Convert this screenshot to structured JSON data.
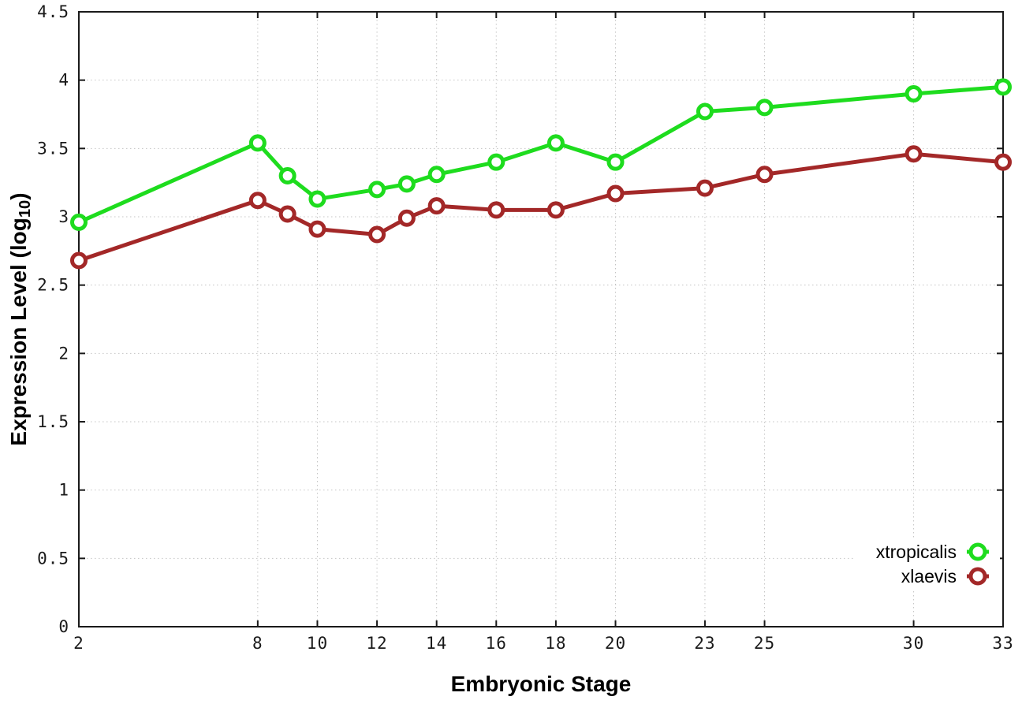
{
  "chart_data": {
    "type": "line",
    "title": "",
    "xlabel": "Embryonic Stage",
    "ylabel": {
      "prefix": "Expression Level (log",
      "sub": "10",
      "suffix": ")"
    },
    "x": [
      2,
      8,
      9,
      10,
      12,
      13,
      14,
      16,
      18,
      20,
      23,
      25,
      30,
      33
    ],
    "series": [
      {
        "name": "xtropicalis",
        "color": "#1edc1e",
        "values": [
          2.96,
          3.54,
          3.3,
          3.13,
          3.2,
          3.24,
          3.31,
          3.4,
          3.54,
          3.4,
          3.77,
          3.8,
          3.9,
          3.95
        ]
      },
      {
        "name": "xlaevis",
        "color": "#a32828",
        "values": [
          2.68,
          3.12,
          3.02,
          2.91,
          2.87,
          2.99,
          3.08,
          3.05,
          3.05,
          3.17,
          3.21,
          3.31,
          3.46,
          3.4
        ]
      }
    ],
    "xlim": [
      2,
      33
    ],
    "ylim": [
      0,
      4.5
    ],
    "xticks": [
      2,
      8,
      10,
      12,
      14,
      16,
      18,
      20,
      23,
      25,
      30,
      33
    ],
    "xtick_labels": [
      "2",
      "8",
      "10",
      "12",
      "14",
      "16",
      "18",
      "20",
      "23",
      "25",
      "30",
      "33"
    ],
    "yticks": [
      0,
      0.5,
      1,
      1.5,
      2,
      2.5,
      3,
      3.5,
      4,
      4.5
    ],
    "ytick_labels": [
      "0",
      "0.5",
      "1",
      "1.5",
      "2",
      "2.5",
      "3",
      "3.5",
      "4",
      "4.5"
    ],
    "grid": true,
    "legend_position": "bottom-right",
    "marker": "open-circle",
    "colors": {
      "border": "#1a1a1a",
      "grid": "#c4c4c4",
      "background": "#ffffff",
      "tick_text": "#1a1a1a"
    }
  }
}
